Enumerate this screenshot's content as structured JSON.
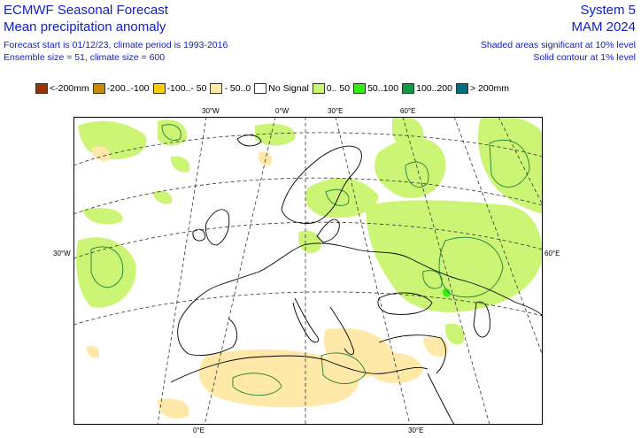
{
  "header": {
    "left_line1": "ECMWF Seasonal Forecast",
    "left_line2": "Mean precipitation anomaly",
    "left_line3": "Forecast start is 01/12/23, climate period is 1993-2016",
    "left_line4": "Ensemble size = 51, climate size = 600",
    "right_line1": "System 5",
    "right_line2": "MAM 2024",
    "right_line3": "Shaded areas significant at 10% level",
    "right_line4": "Solid contour at 1% level"
  },
  "legend": {
    "items": [
      {
        "label": "<-200mm",
        "color": "#993300"
      },
      {
        "label": "-200..-100",
        "color": "#cc8800"
      },
      {
        "label": "-100..- 50",
        "color": "#ffcc00"
      },
      {
        "label": "- 50..0",
        "color": "#ffe8a8"
      },
      {
        "label": "No Signal",
        "color": "#ffffff"
      },
      {
        "label": "0.. 50",
        "color": "#ccf576"
      },
      {
        "label": "50..100",
        "color": "#33ee11"
      },
      {
        "label": "100..200",
        "color": "#109944"
      },
      {
        "label": "> 200mm",
        "color": "#006e78"
      }
    ]
  },
  "map": {
    "top_labels": [
      "30°W",
      "0°W",
      "30°E",
      "60°E"
    ],
    "bottom_labels": [
      "0°E",
      "30°E"
    ],
    "left_label": "30°W",
    "right_label": "60°E"
  }
}
